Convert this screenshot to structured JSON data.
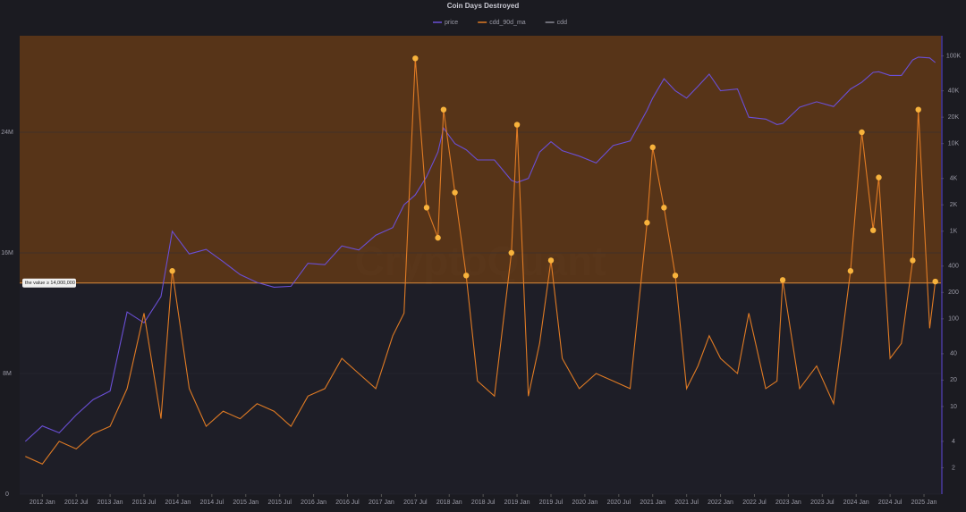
{
  "chart_data": {
    "type": "line",
    "title": "Coin Days Destroyed",
    "watermark": "CryptoQuant",
    "x": [
      "2011-10",
      "2012-01",
      "2012-04",
      "2012-07",
      "2012-10",
      "2013-01",
      "2013-04",
      "2013-07",
      "2013-10",
      "2013-12",
      "2014-03",
      "2014-06",
      "2014-09",
      "2014-12",
      "2015-03",
      "2015-06",
      "2015-09",
      "2015-12",
      "2016-03",
      "2016-06",
      "2016-09",
      "2016-12",
      "2017-03",
      "2017-05",
      "2017-07",
      "2017-09",
      "2017-11",
      "2017-12",
      "2018-02",
      "2018-04",
      "2018-06",
      "2018-09",
      "2018-12",
      "2019-01",
      "2019-03",
      "2019-05",
      "2019-07",
      "2019-09",
      "2019-12",
      "2020-03",
      "2020-06",
      "2020-09",
      "2020-12",
      "2021-01",
      "2021-03",
      "2021-05",
      "2021-07",
      "2021-09",
      "2021-11",
      "2022-01",
      "2022-04",
      "2022-06",
      "2022-09",
      "2022-11",
      "2022-12",
      "2023-03",
      "2023-06",
      "2023-09",
      "2023-12",
      "2024-02",
      "2024-04",
      "2024-05",
      "2024-07",
      "2024-09",
      "2024-11",
      "2024-12",
      "2025-02",
      "2025-03"
    ],
    "series": [
      {
        "name": "price",
        "color": "#6a4fd6",
        "axis": "y2",
        "values": [
          4,
          6,
          5,
          8,
          12,
          15,
          120,
          90,
          180,
          1000,
          550,
          620,
          450,
          320,
          260,
          230,
          235,
          430,
          415,
          680,
          610,
          900,
          1100,
          2000,
          2600,
          4200,
          8000,
          15000,
          10000,
          8500,
          6500,
          6500,
          3800,
          3600,
          4000,
          8000,
          10500,
          8300,
          7200,
          6000,
          9500,
          10700,
          24000,
          33000,
          55000,
          40000,
          33000,
          45000,
          62000,
          40000,
          42000,
          20000,
          19000,
          16500,
          17000,
          26000,
          30000,
          26500,
          42000,
          50000,
          65000,
          66000,
          60000,
          60000,
          90000,
          97000,
          95000,
          84000
        ]
      },
      {
        "name": "cdd_90d_ma",
        "color": "#e07b24",
        "values": [
          2500000,
          2000000,
          3500000,
          3000000,
          4000000,
          4500000,
          7000000,
          12000000,
          5000000,
          14800000,
          7000000,
          4500000,
          5500000,
          5000000,
          6000000,
          5500000,
          4500000,
          6500000,
          7000000,
          9000000,
          8000000,
          7000000,
          10500000,
          12000000,
          28900000,
          19000000,
          17000000,
          25500000,
          20000000,
          14500000,
          7500000,
          6500000,
          16000000,
          24500000,
          6500000,
          10000000,
          15500000,
          9000000,
          7000000,
          8000000,
          7500000,
          7000000,
          18000000,
          23000000,
          19000000,
          14500000,
          7000000,
          8500000,
          10500000,
          9000000,
          8000000,
          12000000,
          7000000,
          7500000,
          14200000,
          7000000,
          8500000,
          6000000,
          14800000,
          24000000,
          17500000,
          21000000,
          9000000,
          10000000,
          15500000,
          25500000,
          11000000,
          14100000
        ]
      },
      {
        "name": "cdd",
        "color": "#8a8a96",
        "values": [
          null,
          null,
          null,
          null,
          null,
          null,
          null,
          null,
          null,
          null,
          null,
          null,
          null,
          null,
          null,
          null,
          null,
          null,
          null,
          null,
          null,
          null,
          null,
          null,
          null,
          null,
          null,
          null,
          null,
          null,
          null,
          null,
          null,
          null,
          null,
          null,
          null,
          null,
          null,
          null,
          null,
          null,
          null,
          null,
          null,
          null,
          null,
          null,
          null,
          null,
          null,
          null,
          null,
          null,
          null,
          null,
          null,
          null,
          null,
          null,
          null,
          null,
          null,
          null,
          null,
          null,
          null,
          null
        ]
      }
    ],
    "xlim": [
      "2011-09",
      "2025-04"
    ],
    "xticks": [
      {
        "value": "2012-01",
        "label": "2012 Jan"
      },
      {
        "value": "2012-07",
        "label": "2012 Jul"
      },
      {
        "value": "2013-01",
        "label": "2013 Jan"
      },
      {
        "value": "2013-07",
        "label": "2013 Jul"
      },
      {
        "value": "2014-01",
        "label": "2014 Jan"
      },
      {
        "value": "2014-07",
        "label": "2014 Jul"
      },
      {
        "value": "2015-01",
        "label": "2015 Jan"
      },
      {
        "value": "2015-07",
        "label": "2015 Jul"
      },
      {
        "value": "2016-01",
        "label": "2016 Jan"
      },
      {
        "value": "2016-07",
        "label": "2016 Jul"
      },
      {
        "value": "2017-01",
        "label": "2017 Jan"
      },
      {
        "value": "2017-07",
        "label": "2017 Jul"
      },
      {
        "value": "2018-01",
        "label": "2018 Jan"
      },
      {
        "value": "2018-07",
        "label": "2018 Jul"
      },
      {
        "value": "2019-01",
        "label": "2019 Jan"
      },
      {
        "value": "2019-07",
        "label": "2019 Jul"
      },
      {
        "value": "2020-01",
        "label": "2020 Jan"
      },
      {
        "value": "2020-07",
        "label": "2020 Jul"
      },
      {
        "value": "2021-01",
        "label": "2021 Jan"
      },
      {
        "value": "2021-07",
        "label": "2021 Jul"
      },
      {
        "value": "2022-01",
        "label": "2022 Jan"
      },
      {
        "value": "2022-07",
        "label": "2022 Jul"
      },
      {
        "value": "2023-01",
        "label": "2023 Jan"
      },
      {
        "value": "2023-07",
        "label": "2023 Jul"
      },
      {
        "value": "2024-01",
        "label": "2024 Jan"
      },
      {
        "value": "2024-07",
        "label": "2024 Jul"
      },
      {
        "value": "2025-01",
        "label": "2025 Jan"
      }
    ],
    "ylim": [
      0,
      30400000
    ],
    "yticks": [
      0,
      {
        "value": 8000000,
        "label": "8M"
      },
      {
        "value": 16000000,
        "label": "16M"
      },
      {
        "value": 24000000,
        "label": "24M"
      }
    ],
    "y2lim": [
      1,
      170000
    ],
    "y2log": true,
    "y2ticks": [
      2,
      4,
      10,
      20,
      40,
      100,
      200,
      400,
      {
        "value": 1000,
        "label": "1K"
      },
      {
        "value": 2000,
        "label": "2K"
      },
      {
        "value": 4000,
        "label": "4K"
      },
      {
        "value": 10000,
        "label": "10K"
      },
      {
        "value": 20000,
        "label": "20K"
      },
      {
        "value": 40000,
        "label": "40K"
      },
      {
        "value": 100000,
        "label": "100K"
      }
    ],
    "threshold": {
      "value": 14000000,
      "label": "the value ≥ 14,000,000",
      "color": "#5c3617",
      "marker_color": "#f8b33c"
    },
    "grid": true
  }
}
